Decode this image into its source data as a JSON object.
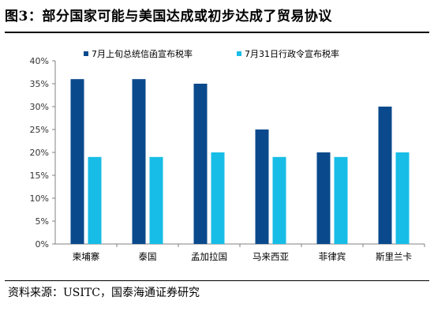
{
  "title": "图3：部分国家可能与美国达成或初步达成了贸易协议",
  "source": "资料来源：USITC，国泰海通证券研究",
  "chart_data": {
    "type": "bar",
    "categories": [
      "柬埔寨",
      "泰国",
      "孟加拉国",
      "马来西亚",
      "菲律宾",
      "斯里兰卡"
    ],
    "series": [
      {
        "name": "7月上旬总统信函宣布税率",
        "values": [
          36,
          36,
          35,
          25,
          20,
          30
        ],
        "color": "#0a4a8c"
      },
      {
        "name": "7月31日行政令宣布税率",
        "values": [
          19,
          19,
          20,
          19,
          19,
          20
        ],
        "color": "#17bde6"
      }
    ],
    "ylim": [
      0,
      40
    ],
    "yticks": [
      "0%",
      "5%",
      "10%",
      "15%",
      "20%",
      "25%",
      "30%",
      "35%",
      "40%"
    ],
    "ytick_values": [
      0,
      5,
      10,
      15,
      20,
      25,
      30,
      35,
      40
    ],
    "legend": "top",
    "grid": false
  }
}
